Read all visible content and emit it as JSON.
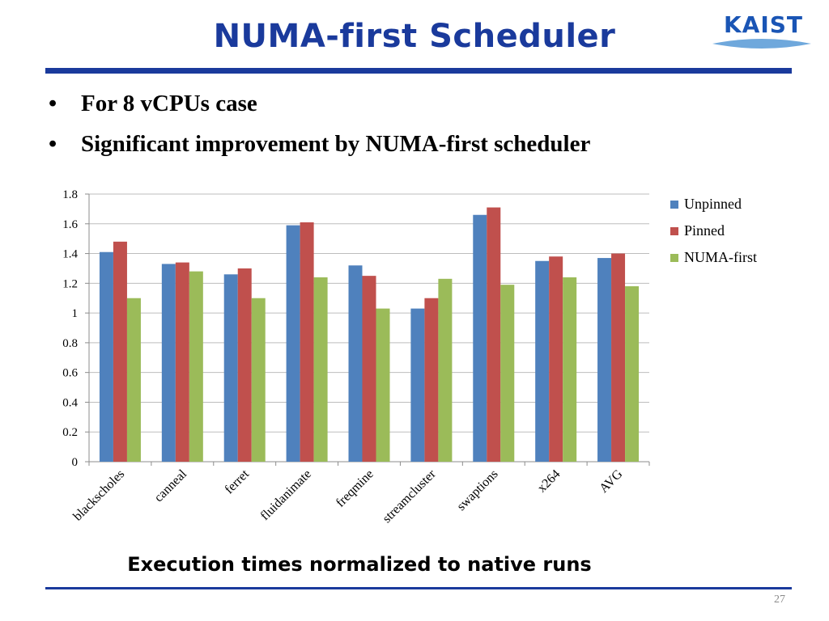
{
  "slide": {
    "title": "NUMA-first Scheduler",
    "logo_text": "KAIST",
    "bullets": [
      "For 8 vCPUs case",
      "Significant improvement by NUMA-first scheduler"
    ],
    "caption": "Execution times normalized to native runs",
    "page_number": "27"
  },
  "colors": {
    "title": "#1a3a9c",
    "rule": "#1a3a9c",
    "logo": "#1a55b5"
  },
  "chart_data": {
    "type": "bar",
    "title": "",
    "xlabel": "",
    "ylabel": "",
    "categories": [
      "blackscholes",
      "canneal",
      "ferret",
      "fluidanimate",
      "freqmine",
      "streamcluster",
      "swaptions",
      "x264",
      "AVG"
    ],
    "series": [
      {
        "name": "Unpinned",
        "color": "#4f81bd",
        "values": [
          1.41,
          1.33,
          1.26,
          1.59,
          1.32,
          1.03,
          1.66,
          1.35,
          1.37
        ]
      },
      {
        "name": "Pinned",
        "color": "#c0504d",
        "values": [
          1.48,
          1.34,
          1.3,
          1.61,
          1.25,
          1.1,
          1.71,
          1.38,
          1.4
        ]
      },
      {
        "name": "NUMA-first",
        "color": "#9bbb59",
        "values": [
          1.1,
          1.28,
          1.1,
          1.24,
          1.03,
          1.23,
          1.19,
          1.24,
          1.18
        ]
      }
    ],
    "ylim": [
      0,
      1.8
    ],
    "yticks": [
      "0",
      "0.2",
      "0.4",
      "0.6",
      "0.8",
      "1",
      "1.2",
      "1.4",
      "1.6",
      "1.8"
    ],
    "grid": true,
    "legend_position": "right"
  }
}
